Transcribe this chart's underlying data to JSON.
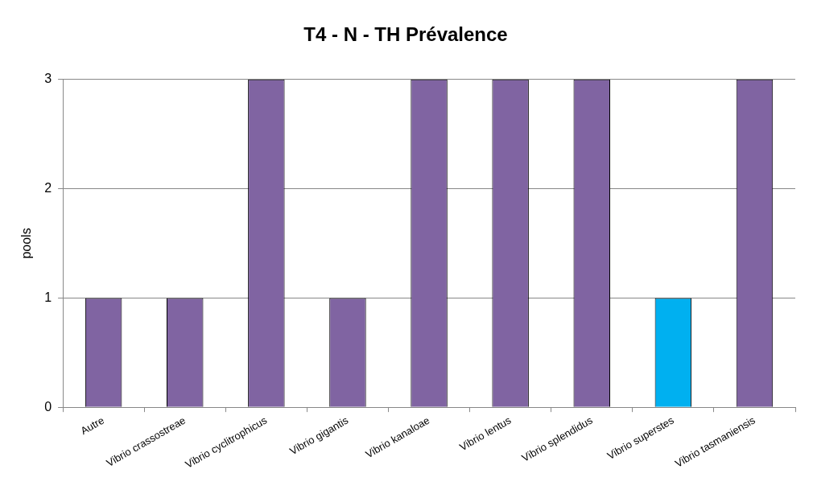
{
  "chart_data": {
    "type": "bar",
    "title": "T4 - N - TH Prévalence",
    "ylabel": "pools",
    "categories": [
      "Autre",
      "Vibrio crassostreae",
      "Vibrio cyclitrophicus",
      "Vibrio gigantis",
      "Vibrio kanaloae",
      "Vibrio lentus",
      "Vibrio splendidus",
      "Vibrio superstes",
      "Vibrio tasmaniensis"
    ],
    "values": [
      1,
      1,
      3,
      1,
      3,
      3,
      3,
      1,
      3
    ],
    "colors": [
      "#8064a2",
      "#8064a2",
      "#8064a2",
      "#8064a2",
      "#8064a2",
      "#8064a2",
      "#8064a2",
      "#00b0f0",
      "#8064a2"
    ],
    "ylim": [
      0,
      3
    ],
    "yticks": [
      0,
      1,
      2,
      3
    ],
    "grid": "y",
    "legend": false
  }
}
